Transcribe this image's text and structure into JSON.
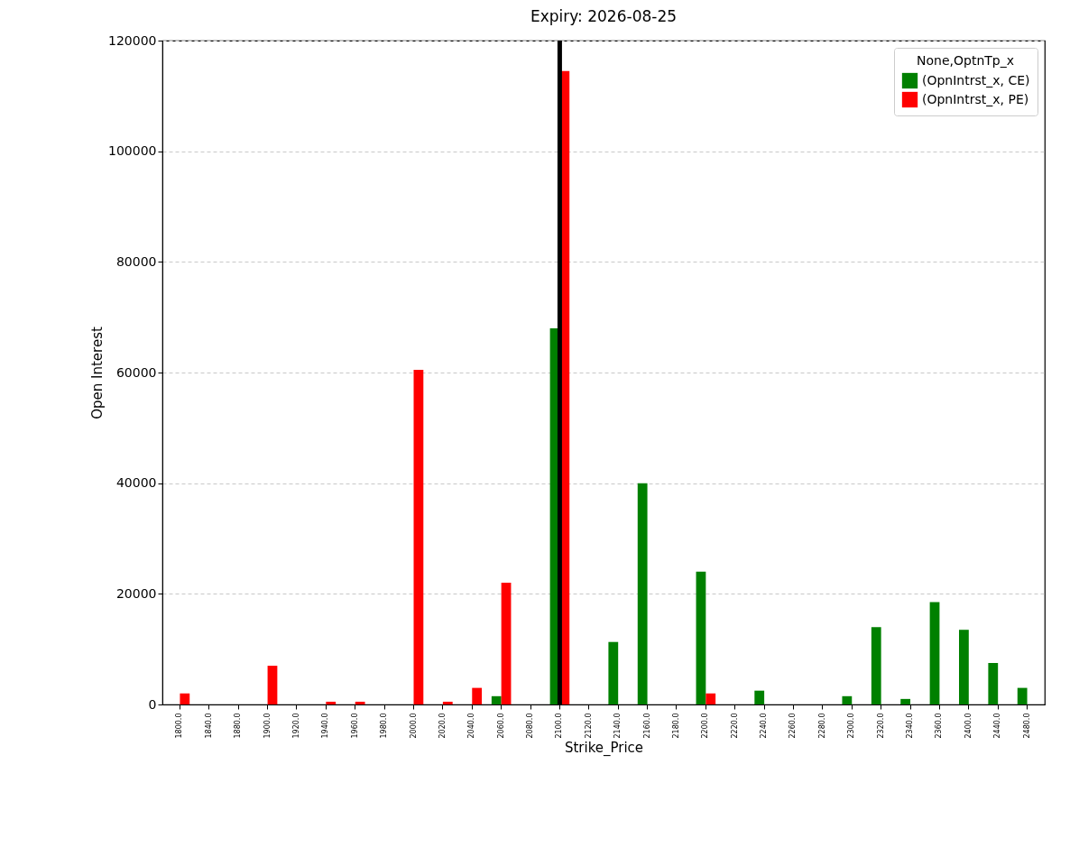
{
  "chart_data": {
    "type": "bar",
    "title": "Expiry: 2026-08-25",
    "xlabel": "Strike_Price",
    "ylabel": "Open Interest",
    "legend_title": "None,OptnTp_x",
    "categories": [
      "1800.0",
      "1840.0",
      "1880.0",
      "1900.0",
      "1920.0",
      "1940.0",
      "1960.0",
      "1980.0",
      "2000.0",
      "2020.0",
      "2040.0",
      "2060.0",
      "2080.0",
      "2100.0",
      "2120.0",
      "2140.0",
      "2160.0",
      "2180.0",
      "2200.0",
      "2220.0",
      "2240.0",
      "2260.0",
      "2280.0",
      "2300.0",
      "2320.0",
      "2340.0",
      "2360.0",
      "2400.0",
      "2440.0",
      "2480.0"
    ],
    "series": [
      {
        "name": "(OpnIntrst_x, CE)",
        "color": "#008000",
        "values": [
          0,
          0,
          0,
          0,
          0,
          0,
          0,
          0,
          0,
          0,
          0,
          1500,
          0,
          68000,
          0,
          11300,
          40000,
          0,
          24000,
          0,
          2500,
          0,
          0,
          1500,
          14000,
          1000,
          18500,
          13500,
          7500,
          3000
        ]
      },
      {
        "name": "(OpnIntrst_x, PE)",
        "color": "#ff0000",
        "values": [
          2000,
          0,
          0,
          7000,
          0,
          500,
          500,
          0,
          60500,
          500,
          3000,
          22000,
          0,
          114500,
          0,
          0,
          0,
          0,
          2000,
          0,
          0,
          0,
          0,
          0,
          0,
          0,
          0,
          0,
          0,
          0
        ]
      }
    ],
    "ylim": [
      0,
      120000
    ],
    "yticks": [
      0,
      20000,
      40000,
      60000,
      80000,
      100000,
      120000
    ],
    "grid": "y",
    "legend": "top right",
    "ref_lines": [
      {
        "axis": "x",
        "value": "2100.0",
        "color": "#000000"
      }
    ]
  }
}
